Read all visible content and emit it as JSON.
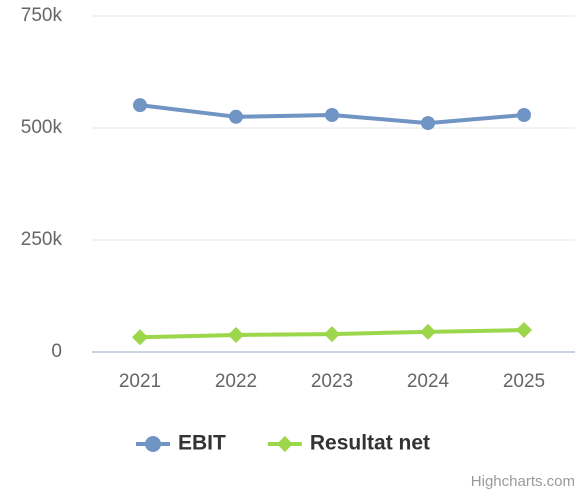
{
  "chart_data": {
    "type": "line",
    "categories": [
      "2021",
      "2022",
      "2023",
      "2024",
      "2025"
    ],
    "series": [
      {
        "name": "EBIT",
        "color": "#7094c4",
        "marker": "circle",
        "values": [
          551000,
          525000,
          529000,
          511000,
          529000
        ]
      },
      {
        "name": "Resultat net",
        "color": "#9bd64b",
        "marker": "diamond",
        "values": [
          33000,
          38000,
          40000,
          45000,
          49000
        ]
      }
    ],
    "ylim": [
      0,
      750000
    ],
    "yticks": [
      0,
      {
        "value": 250000,
        "label": "250k"
      },
      {
        "value": 500000,
        "label": "500k"
      },
      {
        "value": 750000,
        "label": "750k"
      }
    ],
    "grid": true,
    "legend": "bottom",
    "credits": "Highcharts.com"
  }
}
